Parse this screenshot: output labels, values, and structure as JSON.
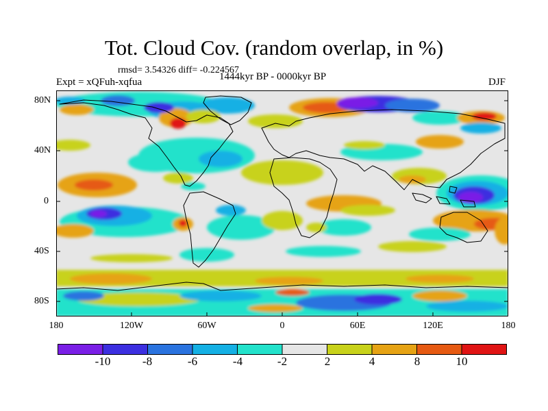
{
  "header": {
    "title": "Tot. Cloud Cov. (random overlap, in %)",
    "stats": "rmsd= 3.54326 diff= -0.224567",
    "experiment": "Expt = xQFuh-xqfua",
    "period": "1444kyr BP - 0000kyr BP",
    "season": "DJF"
  },
  "axes": {
    "lat_labels": [
      "80N",
      "40N",
      "0",
      "40S",
      "80S"
    ],
    "lon_labels": [
      "180",
      "120W",
      "60W",
      "0",
      "60E",
      "120E",
      "180"
    ]
  },
  "colorbar": {
    "labels": [
      "-10",
      "-8",
      "-6",
      "-4",
      "-2",
      "2",
      "4",
      "8",
      "10"
    ],
    "colors": [
      "#7a1fe6",
      "#3c2fe0",
      "#2a73df",
      "#14b0e4",
      "#23e2cb",
      "#e6e6e6",
      "#c8d21b",
      "#e6a314",
      "#e65a12",
      "#e01414"
    ]
  },
  "colors": {
    "background": "#ffffff",
    "ocean_neutral": "#e6e6e6",
    "coastline": "#000000"
  }
}
